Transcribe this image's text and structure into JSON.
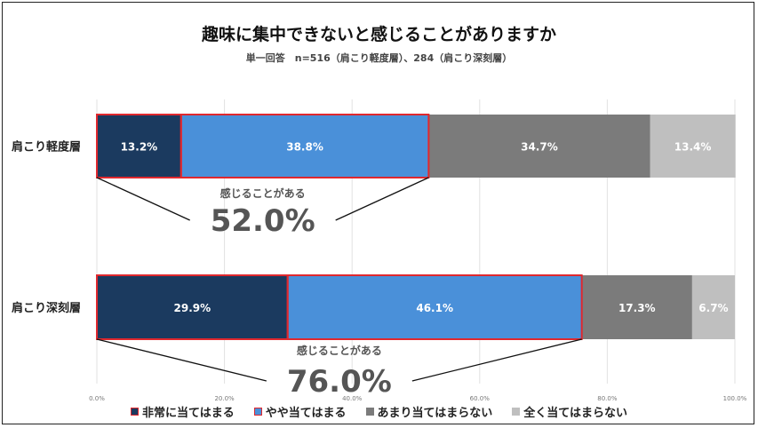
{
  "chart_data": {
    "type": "bar",
    "orientation": "horizontal",
    "stacked": "100%",
    "title": "趣味に集中できないと感じることがありますか",
    "subtitle": "単一回答　n=516（肩こり軽度層）、284（肩こり深刻層）",
    "categories": [
      "肩こり軽度層",
      "肩こり深刻層"
    ],
    "series": [
      {
        "name": "非常に当てはまる",
        "color": "#1b3a5f",
        "values": [
          13.2,
          29.9
        ]
      },
      {
        "name": "やや当てはまる",
        "color": "#4a90d9",
        "values": [
          38.8,
          46.1
        ]
      },
      {
        "name": "あまり当てはまらない",
        "color": "#7b7b7b",
        "values": [
          34.7,
          17.3
        ]
      },
      {
        "name": "全く当てはまらない",
        "color": "#bfbfbf",
        "values": [
          13.4,
          6.7
        ]
      }
    ],
    "data_labels": [
      [
        "13.2%",
        "38.8%",
        "34.7%",
        "13.4%"
      ],
      [
        "29.9%",
        "46.1%",
        "17.3%",
        "6.7%"
      ]
    ],
    "xlim": [
      0,
      100
    ],
    "x_ticks": [
      "0.0%",
      "20.0%",
      "40.0%",
      "60.0%",
      "80.0%",
      "100.0%"
    ],
    "annotations": [
      {
        "label": "感じることがある",
        "value": "52.0%",
        "sum": 52.0
      },
      {
        "label": "感じることがある",
        "value": "76.0%",
        "sum": 76.0
      }
    ],
    "highlight_color": "#e0282e",
    "grid": true,
    "legend_position": "bottom"
  }
}
